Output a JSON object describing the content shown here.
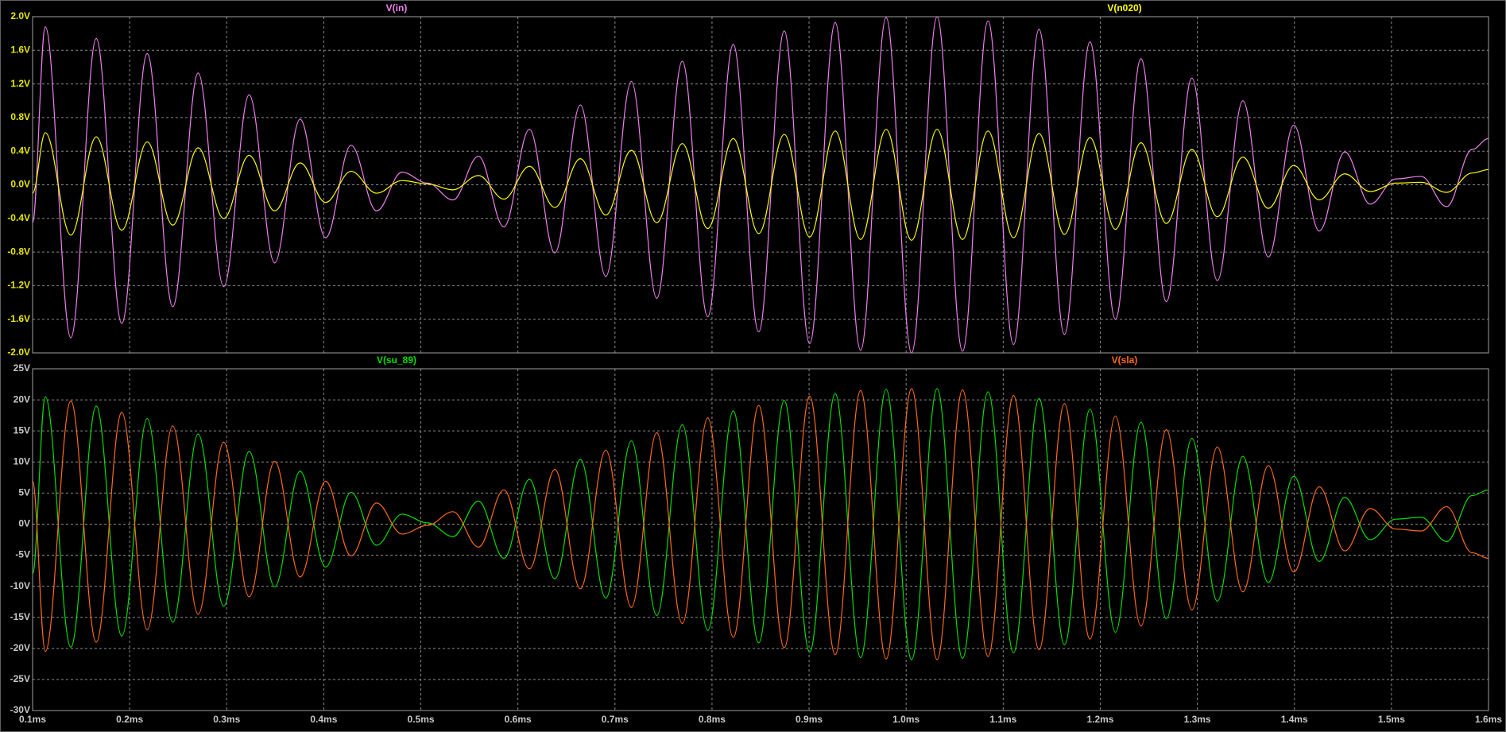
{
  "chart_data": [
    {
      "type": "line",
      "x": [
        0.1,
        0.1131,
        0.1394,
        0.1656,
        0.1919,
        0.2181,
        0.2444,
        0.2706,
        0.2969,
        0.3231,
        0.3494,
        0.3756,
        0.4019,
        0.4281,
        0.4544,
        0.4806,
        0.5069,
        0.5331,
        0.5594,
        0.5856,
        0.6119,
        0.6381,
        0.6644,
        0.6906,
        0.7169,
        0.7431,
        0.7694,
        0.7956,
        0.8219,
        0.8481,
        0.8744,
        0.9006,
        0.9269,
        0.9531,
        0.9794,
        1.0056,
        1.0319,
        1.0581,
        1.0844,
        1.1106,
        1.1369,
        1.1631,
        1.1894,
        1.2156,
        1.2419,
        1.2681,
        1.2944,
        1.3206,
        1.3469,
        1.3731,
        1.3994,
        1.4256,
        1.4519,
        1.4781,
        1.5044,
        1.5306,
        1.5569,
        1.5831,
        1.6
      ],
      "xlim": [
        0.1,
        1.6
      ],
      "ylim": [
        -2.0,
        2.0
      ],
      "yticks": [
        {
          "value": 2.0,
          "label": "2.0V"
        },
        {
          "value": 1.6,
          "label": "1.6V"
        },
        {
          "value": 1.2,
          "label": "1.2V"
        },
        {
          "value": 0.8,
          "label": "0.8V"
        },
        {
          "value": 0.4,
          "label": "0.4V"
        },
        {
          "value": 0.0,
          "label": "0.0V"
        },
        {
          "value": -0.4,
          "label": "-0.4V"
        },
        {
          "value": -0.8,
          "label": "-0.8V"
        },
        {
          "value": -1.2,
          "label": "-1.2V"
        },
        {
          "value": -1.6,
          "label": "-1.6V"
        },
        {
          "value": -2.0,
          "label": "-2.0V"
        }
      ],
      "grid": true,
      "series": [
        {
          "name": "V(in)",
          "color": "#ee82ee",
          "values": [
            -0.45,
            1.88,
            -1.82,
            1.74,
            -1.65,
            1.56,
            -1.45,
            1.33,
            -1.21,
            1.07,
            -0.93,
            0.78,
            -0.63,
            0.47,
            -0.31,
            0.15,
            0.02,
            -0.18,
            0.34,
            -0.5,
            0.66,
            -0.81,
            0.95,
            -1.09,
            1.23,
            -1.35,
            1.47,
            -1.57,
            1.67,
            -1.75,
            1.83,
            -1.89,
            1.93,
            -1.97,
            1.99,
            -2.0,
            2.0,
            -1.98,
            1.95,
            -1.9,
            1.85,
            -1.78,
            1.7,
            -1.6,
            1.5,
            -1.39,
            1.27,
            -1.14,
            1.0,
            -0.86,
            0.71,
            -0.55,
            0.39,
            -0.23,
            0.07,
            0.1,
            -0.26,
            0.42,
            0.55
          ]
        },
        {
          "name": "V(n020)",
          "color": "#ffff00",
          "values": [
            -0.1,
            0.62,
            -0.6,
            0.57,
            -0.54,
            0.51,
            -0.48,
            0.44,
            -0.4,
            0.35,
            -0.31,
            0.26,
            -0.21,
            0.16,
            -0.1,
            0.05,
            0.01,
            -0.06,
            0.11,
            -0.17,
            0.22,
            -0.27,
            0.31,
            -0.36,
            0.41,
            -0.45,
            0.49,
            -0.52,
            0.55,
            -0.58,
            0.6,
            -0.62,
            0.64,
            -0.65,
            0.66,
            -0.66,
            0.66,
            -0.65,
            0.64,
            -0.63,
            0.61,
            -0.59,
            0.56,
            -0.53,
            0.5,
            -0.46,
            0.42,
            -0.38,
            0.33,
            -0.28,
            0.23,
            -0.18,
            0.13,
            -0.08,
            0.02,
            0.03,
            -0.09,
            0.14,
            0.18
          ]
        }
      ]
    },
    {
      "type": "line",
      "x": [
        0.1,
        0.1131,
        0.1394,
        0.1656,
        0.1919,
        0.2181,
        0.2444,
        0.2706,
        0.2969,
        0.3231,
        0.3494,
        0.3756,
        0.4019,
        0.4281,
        0.4544,
        0.4806,
        0.5069,
        0.5331,
        0.5594,
        0.5856,
        0.6119,
        0.6381,
        0.6644,
        0.6906,
        0.7169,
        0.7431,
        0.7694,
        0.7956,
        0.8219,
        0.8481,
        0.8744,
        0.9006,
        0.9269,
        0.9531,
        0.9794,
        1.0056,
        1.0319,
        1.0581,
        1.0844,
        1.1106,
        1.1369,
        1.1631,
        1.1894,
        1.2156,
        1.2419,
        1.2681,
        1.2944,
        1.3206,
        1.3469,
        1.3731,
        1.3994,
        1.4256,
        1.4519,
        1.4781,
        1.5044,
        1.5306,
        1.5569,
        1.5831,
        1.6
      ],
      "xlim": [
        0.1,
        1.6
      ],
      "xticks": [
        {
          "value": 0.1,
          "label": "0.1ms"
        },
        {
          "value": 0.2,
          "label": "0.2ms"
        },
        {
          "value": 0.3,
          "label": "0.3ms"
        },
        {
          "value": 0.4,
          "label": "0.4ms"
        },
        {
          "value": 0.5,
          "label": "0.5ms"
        },
        {
          "value": 0.6,
          "label": "0.6ms"
        },
        {
          "value": 0.7,
          "label": "0.7ms"
        },
        {
          "value": 0.8,
          "label": "0.8ms"
        },
        {
          "value": 0.9,
          "label": "0.9ms"
        },
        {
          "value": 1.0,
          "label": "1.0ms"
        },
        {
          "value": 1.1,
          "label": "1.1ms"
        },
        {
          "value": 1.2,
          "label": "1.2ms"
        },
        {
          "value": 1.3,
          "label": "1.3ms"
        },
        {
          "value": 1.4,
          "label": "1.4ms"
        },
        {
          "value": 1.5,
          "label": "1.5ms"
        },
        {
          "value": 1.6,
          "label": "1.6ms"
        }
      ],
      "ylim": [
        -30,
        25
      ],
      "yticks": [
        {
          "value": 25,
          "label": "25V"
        },
        {
          "value": 20,
          "label": "20V"
        },
        {
          "value": 15,
          "label": "15V"
        },
        {
          "value": 10,
          "label": "10V"
        },
        {
          "value": 5,
          "label": "5V"
        },
        {
          "value": 0,
          "label": "0V"
        },
        {
          "value": -5,
          "label": "-5V"
        },
        {
          "value": -10,
          "label": "-10V"
        },
        {
          "value": -15,
          "label": "-15V"
        },
        {
          "value": -20,
          "label": "-20V"
        },
        {
          "value": -25,
          "label": "-25V"
        },
        {
          "value": -30,
          "label": "-30V"
        }
      ],
      "grid": true,
      "series": [
        {
          "name": "V(su_89)",
          "color": "#00e000",
          "values": [
            -8,
            20.5,
            -19.8,
            19.0,
            -18.0,
            17.0,
            -15.8,
            14.5,
            -13.2,
            11.7,
            -10.1,
            8.5,
            -6.9,
            5.1,
            -3.4,
            1.6,
            0.2,
            -2.0,
            3.7,
            -5.5,
            7.2,
            -8.8,
            10.4,
            -11.9,
            13.4,
            -14.7,
            16.0,
            -17.1,
            18.2,
            -19.1,
            19.9,
            -20.6,
            21.0,
            -21.5,
            21.7,
            -21.8,
            21.8,
            -21.6,
            21.3,
            -20.7,
            20.2,
            -19.4,
            18.5,
            -17.4,
            16.4,
            -15.2,
            13.8,
            -12.4,
            10.9,
            -9.4,
            7.7,
            -6.0,
            4.3,
            -2.5,
            0.8,
            1.1,
            -2.8,
            4.6,
            5.5
          ]
        },
        {
          "name": "V(sla)",
          "color": "#ff6a1a",
          "values": [
            7,
            -20.5,
            19.8,
            -19.0,
            18.0,
            -17.0,
            15.8,
            -14.5,
            13.2,
            -11.7,
            10.1,
            -8.5,
            6.9,
            -5.1,
            3.4,
            -1.6,
            -0.2,
            2.0,
            -3.7,
            5.5,
            -7.2,
            8.8,
            -10.4,
            11.9,
            -13.4,
            14.7,
            -16.0,
            17.1,
            -18.2,
            19.1,
            -19.9,
            20.6,
            -21.0,
            21.5,
            -21.7,
            21.8,
            -21.8,
            21.6,
            -21.3,
            20.7,
            -20.2,
            19.4,
            -18.5,
            17.4,
            -16.4,
            15.2,
            -13.8,
            12.4,
            -10.9,
            9.4,
            -7.7,
            6.0,
            -4.3,
            2.5,
            -0.8,
            -1.1,
            2.8,
            -4.6,
            -5.5
          ]
        }
      ]
    }
  ]
}
